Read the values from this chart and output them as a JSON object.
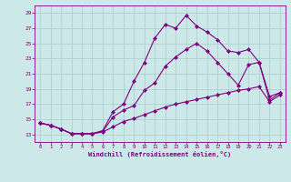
{
  "xlabel": "Windchill (Refroidissement éolien,°C)",
  "bg_color": "#cce8e8",
  "line_color": "#800080",
  "grid_color": "#aacccc",
  "xlim": [
    -0.5,
    23.5
  ],
  "ylim": [
    12.0,
    30.0
  ],
  "yticks": [
    13,
    15,
    17,
    19,
    21,
    23,
    25,
    27,
    29
  ],
  "xticks": [
    0,
    1,
    2,
    3,
    4,
    5,
    6,
    7,
    8,
    9,
    10,
    11,
    12,
    13,
    14,
    15,
    16,
    17,
    18,
    19,
    20,
    21,
    22,
    23
  ],
  "line1_x": [
    0,
    1,
    2,
    3,
    4,
    5,
    6,
    7,
    8,
    9,
    10,
    11,
    12,
    13,
    14,
    15,
    16,
    17,
    18,
    19,
    20,
    21,
    22,
    23
  ],
  "line1_y": [
    14.5,
    14.2,
    13.7,
    13.1,
    13.1,
    13.1,
    13.3,
    14.0,
    14.7,
    15.1,
    15.6,
    16.1,
    16.6,
    17.0,
    17.3,
    17.6,
    17.9,
    18.2,
    18.5,
    18.8,
    19.0,
    19.3,
    17.3,
    18.2
  ],
  "line2_x": [
    0,
    1,
    2,
    3,
    4,
    5,
    6,
    7,
    8,
    9,
    10,
    11,
    12,
    13,
    14,
    15,
    16,
    17,
    18,
    19,
    20,
    21,
    22,
    23
  ],
  "line2_y": [
    14.5,
    14.2,
    13.7,
    13.1,
    13.1,
    13.1,
    13.4,
    15.3,
    16.2,
    16.8,
    18.8,
    19.8,
    22.0,
    23.2,
    24.2,
    25.0,
    24.0,
    22.5,
    21.0,
    19.5,
    22.2,
    22.5,
    18.0,
    18.5
  ],
  "line3_x": [
    0,
    1,
    2,
    3,
    4,
    5,
    6,
    7,
    8,
    9,
    10,
    11,
    12,
    13,
    14,
    15,
    16,
    17,
    18,
    19,
    20,
    21,
    22,
    23
  ],
  "line3_y": [
    14.5,
    14.2,
    13.7,
    13.1,
    13.1,
    13.1,
    13.5,
    16.0,
    17.0,
    20.0,
    22.5,
    25.7,
    27.5,
    27.0,
    28.7,
    27.3,
    26.5,
    25.5,
    24.0,
    23.8,
    24.2,
    22.5,
    17.5,
    18.5
  ],
  "marker": "D",
  "markersize": 2.0,
  "linewidth": 0.8
}
